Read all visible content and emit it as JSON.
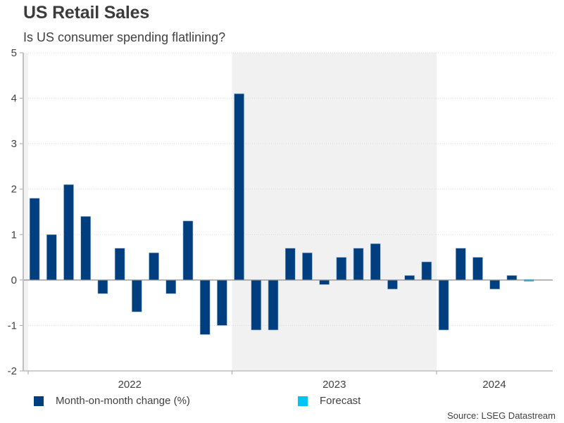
{
  "header": {
    "title": "US Retail Sales",
    "subtitle": "Is US consumer spending flatlining?"
  },
  "footer": {
    "source": "Source: LSEG Datastream"
  },
  "colors": {
    "bar": "#003f7f",
    "forecast": "#00c4f4",
    "shade": "#f1f1f1",
    "axis": "#a6a6a6",
    "grid": "#d9d9d9"
  },
  "chart_data": {
    "type": "bar",
    "title": "US Retail Sales",
    "subtitle": "Is US consumer spending flatlining?",
    "xlabel": "",
    "ylabel": "",
    "ylim": [
      -2,
      5
    ],
    "yticks": [
      -2,
      -1,
      0,
      1,
      2,
      3,
      4,
      5
    ],
    "grid": true,
    "legend_position": "bottom",
    "shaded_period": {
      "start": "2023-01",
      "end": "2024-01",
      "label": "2023"
    },
    "year_labels": [
      "2022",
      "2023",
      "2024"
    ],
    "categories": [
      "2022-01",
      "2022-02",
      "2022-03",
      "2022-04",
      "2022-05",
      "2022-06",
      "2022-07",
      "2022-08",
      "2022-09",
      "2022-10",
      "2022-11",
      "2022-12",
      "2023-01",
      "2023-02",
      "2023-03",
      "2023-04",
      "2023-05",
      "2023-06",
      "2023-07",
      "2023-08",
      "2023-09",
      "2023-10",
      "2023-11",
      "2023-12",
      "2024-01",
      "2024-02",
      "2024-03",
      "2024-04",
      "2024-05",
      "2024-06"
    ],
    "series": [
      {
        "name": "Month-on-month change (%)",
        "color": "#003f7f",
        "values": [
          1.8,
          1.0,
          2.1,
          1.4,
          -0.3,
          0.7,
          -0.7,
          0.6,
          -0.3,
          1.3,
          -1.2,
          -1.0,
          4.1,
          -1.1,
          -1.1,
          0.7,
          0.6,
          -0.1,
          0.5,
          0.7,
          0.8,
          -0.2,
          0.1,
          0.4,
          -1.1,
          0.7,
          0.5,
          -0.2,
          0.1,
          null
        ]
      },
      {
        "name": "Forecast",
        "color": "#00c4f4",
        "values": [
          null,
          null,
          null,
          null,
          null,
          null,
          null,
          null,
          null,
          null,
          null,
          null,
          null,
          null,
          null,
          null,
          null,
          null,
          null,
          null,
          null,
          null,
          null,
          null,
          null,
          null,
          null,
          null,
          null,
          -0.03
        ]
      }
    ]
  }
}
